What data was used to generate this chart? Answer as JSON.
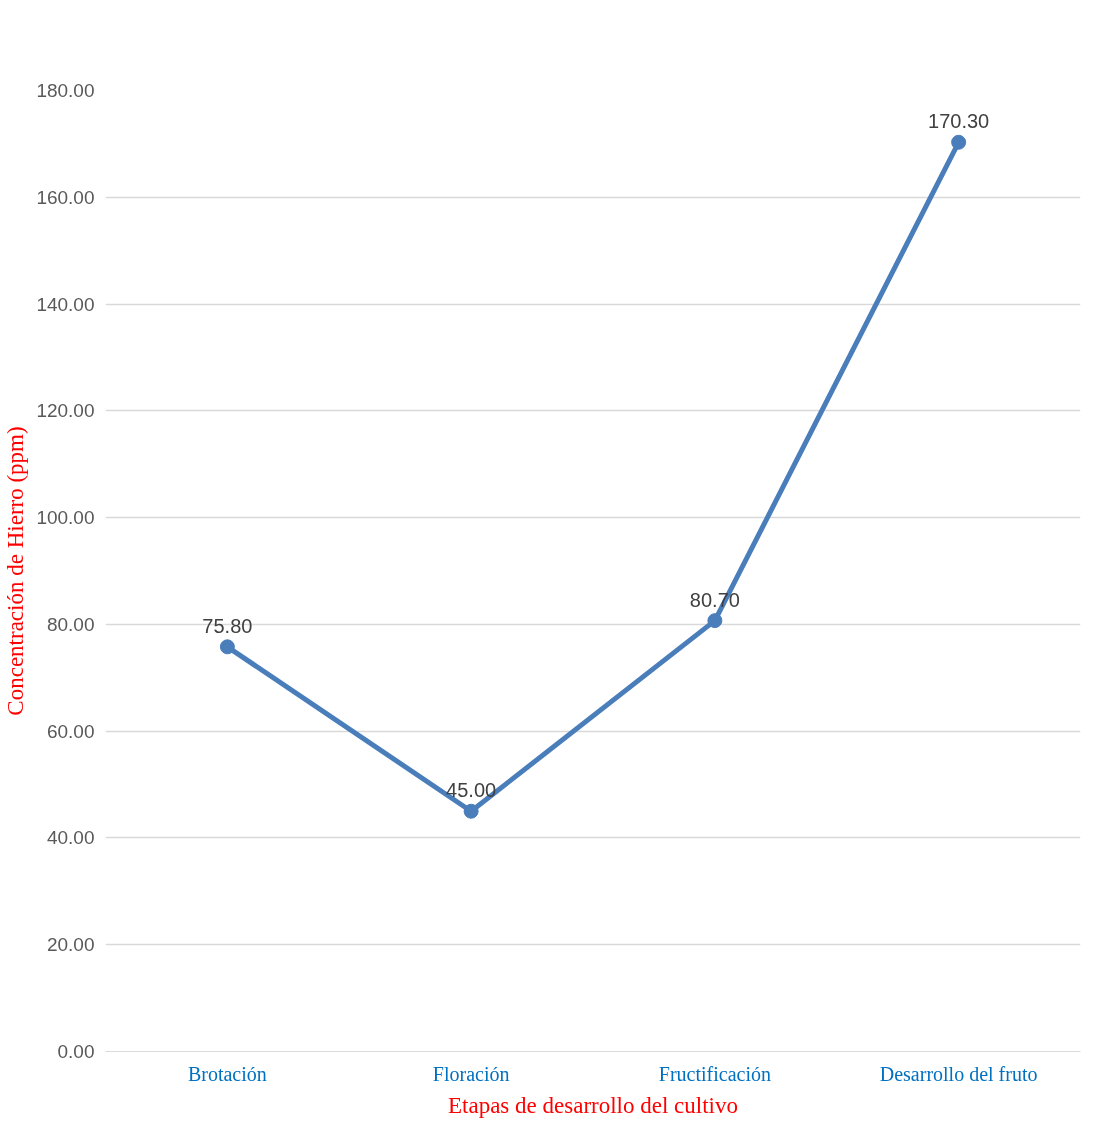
{
  "chart_data": {
    "type": "line",
    "xlabel": "Etapas de desarrollo del cultivo",
    "ylabel": "Concentración de Hierro (ppm)",
    "categories": [
      "Brotación",
      "Floración",
      "Fructificación",
      "Desarrollo del fruto"
    ],
    "series": [
      {
        "color": "#4a7ebb",
        "values": [
          75.8,
          45.0,
          80.7,
          170.3
        ],
        "value_labels": [
          "75.80",
          "45.00",
          "80.70",
          "170.30"
        ]
      }
    ],
    "ylim": [
      0,
      180
    ],
    "yticks": [
      {
        "value": 0,
        "label": "0.00"
      },
      {
        "value": 20,
        "label": "20.00"
      },
      {
        "value": 40,
        "label": "40.00"
      },
      {
        "value": 60,
        "label": "60.00"
      },
      {
        "value": 80,
        "label": "80.00"
      },
      {
        "value": 100,
        "label": "100.00"
      },
      {
        "value": 120,
        "label": "120.00"
      },
      {
        "value": 140,
        "label": "140.00"
      },
      {
        "value": 160,
        "label": "160.00"
      },
      {
        "value": 180,
        "label": "180.00"
      }
    ],
    "grid": "y",
    "marker": "circle",
    "line_style": "solid"
  }
}
